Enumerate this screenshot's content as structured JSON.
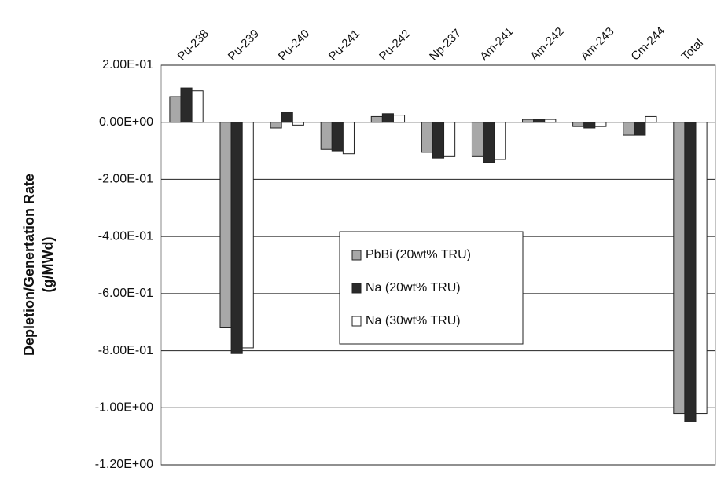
{
  "chart_data": {
    "type": "bar",
    "y_label": [
      "Depletion/Genertation Rate",
      "(g/MWd)"
    ],
    "categories": [
      "Pu-238",
      "Pu-239",
      "Pu-240",
      "Pu-241",
      "Pu-242",
      "Np-237",
      "Am-241",
      "Am-242",
      "Am-243",
      "Cm-244",
      "Total"
    ],
    "series": [
      {
        "name": "PbBi (20wt% TRU)",
        "color": "#a8a8a8",
        "values": [
          0.09,
          -0.72,
          -0.02,
          -0.095,
          0.02,
          -0.105,
          -0.12,
          0.01,
          -0.015,
          -0.045,
          -1.02
        ]
      },
      {
        "name": "Na (20wt% TRU)",
        "color": "#2a2a2a",
        "values": [
          0.12,
          -0.81,
          0.035,
          -0.1,
          0.03,
          -0.125,
          -0.14,
          0.01,
          -0.02,
          -0.045,
          -1.05
        ]
      },
      {
        "name": "Na (30wt% TRU)",
        "color": "#ffffff",
        "values": [
          0.11,
          -0.79,
          -0.01,
          -0.11,
          0.025,
          -0.12,
          -0.13,
          0.01,
          -0.015,
          0.02,
          -1.02
        ]
      }
    ],
    "ylim": [
      -1.2,
      0.2
    ],
    "yticks": [
      {
        "value": -1.2,
        "label": "-1.20E+00"
      },
      {
        "value": -1.0,
        "label": "-1.00E+00"
      },
      {
        "value": -0.8,
        "label": "-8.00E-01"
      },
      {
        "value": -0.6,
        "label": "-6.00E-01"
      },
      {
        "value": -0.4,
        "label": "-4.00E-01"
      },
      {
        "value": -0.2,
        "label": "-2.00E-01"
      },
      {
        "value": 0,
        "label": "0.00E+00"
      },
      {
        "value": 0.2,
        "label": "2.00E-01"
      }
    ],
    "grid": true
  }
}
